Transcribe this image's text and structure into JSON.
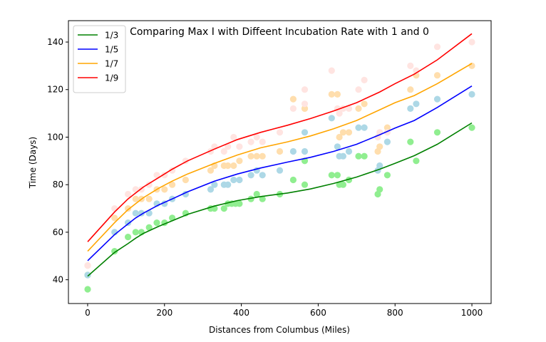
{
  "chart_data": {
    "type": "line",
    "title": "Comparing Max I with Diffeent Incubation Rate with 1 and 0",
    "xlabel": "Distances from Columbus (Miles)",
    "ylabel": "Time (Days)",
    "xlim": [
      -50,
      1050
    ],
    "ylim": [
      30,
      149
    ],
    "xticks": [
      0,
      200,
      400,
      600,
      800,
      1000
    ],
    "yticks": [
      40,
      60,
      80,
      100,
      120,
      140
    ],
    "legend_position": "top-left",
    "grid": false,
    "series": [
      {
        "name": "1/3",
        "color": "#008000",
        "point_color": "#90ee90",
        "x": [
          0,
          70,
          105,
          125,
          145,
          185,
          220,
          260,
          330,
          390,
          450,
          520,
          580,
          640,
          700,
          760,
          800,
          850,
          910,
          1000
        ],
        "y": [
          41.5,
          51.5,
          55.2,
          57.5,
          59.5,
          62.5,
          64.8,
          67.5,
          71,
          73.3,
          75,
          76.5,
          78.2,
          80.5,
          83.2,
          86.5,
          89,
          92.2,
          97,
          106
        ],
        "points": [
          [
            0,
            42
          ],
          [
            0,
            36
          ],
          [
            70,
            52
          ],
          [
            105,
            58
          ],
          [
            125,
            60
          ],
          [
            140,
            60
          ],
          [
            160,
            62
          ],
          [
            180,
            64
          ],
          [
            200,
            64
          ],
          [
            220,
            66
          ],
          [
            255,
            68
          ],
          [
            320,
            70
          ],
          [
            330,
            70
          ],
          [
            355,
            70
          ],
          [
            365,
            72
          ],
          [
            375,
            72
          ],
          [
            385,
            72
          ],
          [
            395,
            72
          ],
          [
            425,
            74
          ],
          [
            440,
            76
          ],
          [
            455,
            74
          ],
          [
            500,
            76
          ],
          [
            535,
            82
          ],
          [
            565,
            80
          ],
          [
            565,
            90
          ],
          [
            635,
            84
          ],
          [
            650,
            84
          ],
          [
            655,
            80
          ],
          [
            665,
            80
          ],
          [
            680,
            82
          ],
          [
            705,
            92
          ],
          [
            720,
            92
          ],
          [
            755,
            76
          ],
          [
            760,
            78
          ],
          [
            780,
            84
          ],
          [
            840,
            98
          ],
          [
            855,
            90
          ],
          [
            910,
            102
          ],
          [
            1000,
            104
          ]
        ]
      },
      {
        "name": "1/5",
        "color": "#0000ff",
        "point_color": "#add8e6",
        "x": [
          0,
          70,
          105,
          125,
          145,
          185,
          220,
          260,
          330,
          390,
          450,
          520,
          580,
          640,
          700,
          760,
          800,
          850,
          910,
          1000
        ],
        "y": [
          48,
          59,
          63.5,
          66,
          68,
          71.5,
          74,
          77,
          81.5,
          84.5,
          87,
          89.5,
          91.5,
          94,
          97,
          101,
          103.8,
          107,
          112.5,
          121.5
        ],
        "points": [
          [
            0,
            42
          ],
          [
            70,
            60
          ],
          [
            105,
            64
          ],
          [
            125,
            68
          ],
          [
            140,
            68
          ],
          [
            160,
            68
          ],
          [
            180,
            72
          ],
          [
            200,
            72
          ],
          [
            220,
            74
          ],
          [
            255,
            76
          ],
          [
            320,
            78
          ],
          [
            330,
            80
          ],
          [
            355,
            80
          ],
          [
            365,
            80
          ],
          [
            380,
            82
          ],
          [
            395,
            82
          ],
          [
            425,
            84
          ],
          [
            440,
            86
          ],
          [
            455,
            84
          ],
          [
            500,
            86
          ],
          [
            535,
            94
          ],
          [
            565,
            94
          ],
          [
            565,
            102
          ],
          [
            635,
            108
          ],
          [
            650,
            96
          ],
          [
            655,
            92
          ],
          [
            665,
            92
          ],
          [
            680,
            94
          ],
          [
            705,
            104
          ],
          [
            720,
            104
          ],
          [
            755,
            86
          ],
          [
            760,
            88
          ],
          [
            780,
            98
          ],
          [
            840,
            112
          ],
          [
            855,
            114
          ],
          [
            910,
            116
          ],
          [
            1000,
            118
          ]
        ]
      },
      {
        "name": "1/7",
        "color": "#ffa500",
        "point_color": "#ffdead",
        "x": [
          0,
          70,
          105,
          125,
          145,
          185,
          220,
          260,
          330,
          390,
          450,
          520,
          580,
          640,
          700,
          760,
          800,
          850,
          910,
          1000
        ],
        "y": [
          52,
          64,
          69.5,
          72,
          74.5,
          78.5,
          81.5,
          84.5,
          89,
          92.5,
          95.5,
          98,
          100.5,
          103.5,
          107,
          111.5,
          114.5,
          117.5,
          122.5,
          131
        ],
        "points": [
          [
            0,
            46
          ],
          [
            70,
            66
          ],
          [
            105,
            70
          ],
          [
            125,
            74
          ],
          [
            140,
            74
          ],
          [
            160,
            74
          ],
          [
            180,
            78
          ],
          [
            200,
            78
          ],
          [
            220,
            80
          ],
          [
            255,
            82
          ],
          [
            320,
            86
          ],
          [
            330,
            88
          ],
          [
            355,
            88
          ],
          [
            365,
            88
          ],
          [
            380,
            88
          ],
          [
            395,
            90
          ],
          [
            425,
            92
          ],
          [
            440,
            92
          ],
          [
            455,
            92
          ],
          [
            500,
            94
          ],
          [
            535,
            116
          ],
          [
            565,
            112
          ],
          [
            565,
            112
          ],
          [
            635,
            118
          ],
          [
            650,
            118
          ],
          [
            655,
            100
          ],
          [
            665,
            102
          ],
          [
            680,
            102
          ],
          [
            705,
            112
          ],
          [
            720,
            114
          ],
          [
            755,
            94
          ],
          [
            760,
            96
          ],
          [
            780,
            104
          ],
          [
            840,
            120
          ],
          [
            855,
            126
          ],
          [
            910,
            126
          ],
          [
            1000,
            130
          ]
        ]
      },
      {
        "name": "1/9",
        "color": "#ff0000",
        "point_color": "#ffe4e1",
        "x": [
          0,
          70,
          105,
          125,
          145,
          185,
          220,
          260,
          330,
          390,
          450,
          520,
          580,
          640,
          700,
          760,
          800,
          850,
          910,
          1000
        ],
        "y": [
          56,
          68.5,
          74,
          76.5,
          79,
          83,
          86.5,
          90,
          95,
          99,
          102,
          105,
          107.8,
          111,
          114.5,
          119,
          122.5,
          126.5,
          132.5,
          143.5
        ],
        "points": [
          [
            0,
            46
          ],
          [
            70,
            70
          ],
          [
            105,
            76
          ],
          [
            125,
            78
          ],
          [
            140,
            78
          ],
          [
            160,
            80
          ],
          [
            180,
            84
          ],
          [
            200,
            84
          ],
          [
            220,
            86
          ],
          [
            255,
            90
          ],
          [
            320,
            94
          ],
          [
            330,
            96
          ],
          [
            355,
            94
          ],
          [
            365,
            96
          ],
          [
            380,
            100
          ],
          [
            395,
            96
          ],
          [
            425,
            98
          ],
          [
            440,
            100
          ],
          [
            455,
            98
          ],
          [
            500,
            102
          ],
          [
            535,
            112
          ],
          [
            565,
            114
          ],
          [
            565,
            120
          ],
          [
            635,
            128
          ],
          [
            650,
            112
          ],
          [
            655,
            110
          ],
          [
            665,
            112
          ],
          [
            680,
            112
          ],
          [
            705,
            120
          ],
          [
            720,
            124
          ],
          [
            755,
            100
          ],
          [
            760,
            102
          ],
          [
            780,
            102
          ],
          [
            840,
            130
          ],
          [
            855,
            128
          ],
          [
            910,
            138
          ],
          [
            1000,
            140
          ]
        ]
      }
    ]
  }
}
